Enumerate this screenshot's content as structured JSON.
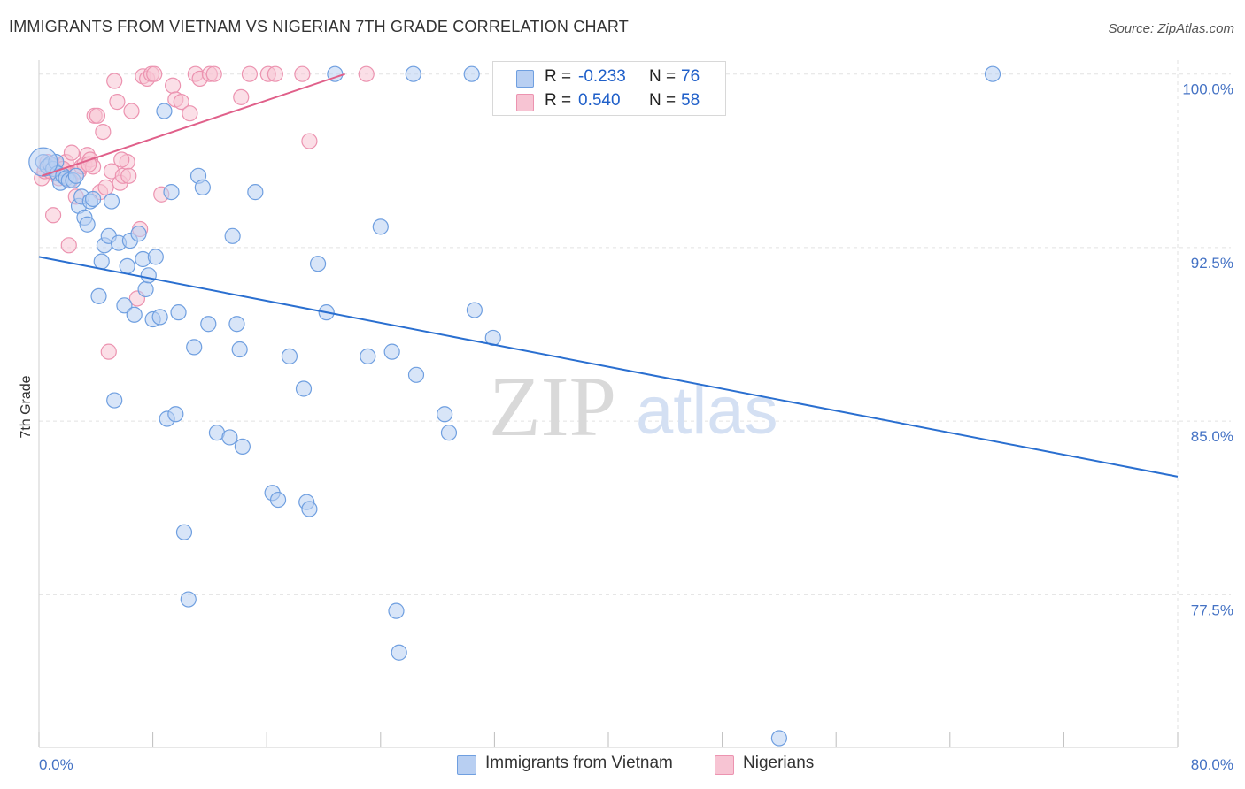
{
  "header": {
    "title": "IMMIGRANTS FROM VIETNAM VS NIGERIAN 7TH GRADE CORRELATION CHART",
    "source": "Source: ZipAtlas.com"
  },
  "watermark": {
    "zip": "ZIP",
    "atlas": "atlas"
  },
  "legend_top": {
    "rows": [
      {
        "r_label": "R =",
        "r_value": "-0.233",
        "n_label": "N =",
        "n_value": "76"
      },
      {
        "r_label": "R =",
        "r_value": "0.540",
        "n_label": "N =",
        "n_value": "58"
      }
    ]
  },
  "colors": {
    "blue_fill": "#b8cff2",
    "blue_stroke": "#6f9fe0",
    "blue_line": "#2a6fd0",
    "pink_fill": "#f7c4d3",
    "pink_stroke": "#ec93b0",
    "pink_line": "#e0608a",
    "tick_text": "#4472c4",
    "grid": "#e2e2e2"
  },
  "chart_data": {
    "type": "scatter",
    "title": "IMMIGRANTS FROM VIETNAM VS NIGERIAN 7TH GRADE CORRELATION CHART",
    "xlabel": "",
    "ylabel": "7th Grade",
    "xlim": [
      0,
      80
    ],
    "ylim": [
      70.9,
      100.6
    ],
    "x_tick_labels": [
      {
        "x": 0,
        "label": "0.0%"
      },
      {
        "x": 80,
        "label": "80.0%"
      }
    ],
    "x_minor_ticks": [
      0,
      8,
      16,
      24,
      32,
      40,
      48,
      56,
      64,
      72,
      80
    ],
    "y_ticks": [
      {
        "y": 100.0,
        "label": "100.0%"
      },
      {
        "y": 92.5,
        "label": "92.5%"
      },
      {
        "y": 85.0,
        "label": "85.0%"
      },
      {
        "y": 77.5,
        "label": "77.5%"
      }
    ],
    "grid_y": [
      100.0,
      92.5,
      85.0,
      77.5
    ],
    "legend_placement": "top-center",
    "series": [
      {
        "name": "Immigrants from Vietnam",
        "color": "#b8cff2",
        "R": -0.233,
        "N": 76,
        "trend": {
          "x": [
            0,
            80
          ],
          "y": [
            92.1,
            82.6
          ]
        },
        "points": [
          {
            "x": 0.3,
            "y": 96.2
          },
          {
            "x": 0.6,
            "y": 96.0
          },
          {
            "x": 0.8,
            "y": 96.1
          },
          {
            "x": 1.0,
            "y": 95.9
          },
          {
            "x": 1.2,
            "y": 96.2
          },
          {
            "x": 1.3,
            "y": 95.7
          },
          {
            "x": 1.5,
            "y": 95.3
          },
          {
            "x": 1.7,
            "y": 95.6
          },
          {
            "x": 1.9,
            "y": 95.5
          },
          {
            "x": 2.1,
            "y": 95.4
          },
          {
            "x": 2.4,
            "y": 95.4
          },
          {
            "x": 2.6,
            "y": 95.6
          },
          {
            "x": 2.8,
            "y": 94.3
          },
          {
            "x": 3.0,
            "y": 94.7
          },
          {
            "x": 3.2,
            "y": 93.8
          },
          {
            "x": 3.4,
            "y": 93.5
          },
          {
            "x": 3.6,
            "y": 94.5
          },
          {
            "x": 3.8,
            "y": 94.6
          },
          {
            "x": 4.2,
            "y": 90.4
          },
          {
            "x": 4.4,
            "y": 91.9
          },
          {
            "x": 4.6,
            "y": 92.6
          },
          {
            "x": 4.9,
            "y": 93.0
          },
          {
            "x": 5.1,
            "y": 94.5
          },
          {
            "x": 5.3,
            "y": 85.9
          },
          {
            "x": 5.6,
            "y": 92.7
          },
          {
            "x": 6.0,
            "y": 90.0
          },
          {
            "x": 6.2,
            "y": 91.7
          },
          {
            "x": 6.4,
            "y": 92.8
          },
          {
            "x": 6.7,
            "y": 89.6
          },
          {
            "x": 7.0,
            "y": 93.1
          },
          {
            "x": 7.3,
            "y": 92.0
          },
          {
            "x": 7.5,
            "y": 90.7
          },
          {
            "x": 7.7,
            "y": 91.3
          },
          {
            "x": 8.0,
            "y": 89.4
          },
          {
            "x": 8.2,
            "y": 92.1
          },
          {
            "x": 8.5,
            "y": 89.5
          },
          {
            "x": 8.8,
            "y": 98.4
          },
          {
            "x": 9.0,
            "y": 85.1
          },
          {
            "x": 9.3,
            "y": 94.9
          },
          {
            "x": 9.6,
            "y": 85.3
          },
          {
            "x": 9.8,
            "y": 89.7
          },
          {
            "x": 10.2,
            "y": 80.2
          },
          {
            "x": 10.5,
            "y": 77.3
          },
          {
            "x": 10.9,
            "y": 88.2
          },
          {
            "x": 11.2,
            "y": 95.6
          },
          {
            "x": 11.5,
            "y": 95.1
          },
          {
            "x": 11.9,
            "y": 89.2
          },
          {
            "x": 12.5,
            "y": 84.5
          },
          {
            "x": 13.4,
            "y": 84.3
          },
          {
            "x": 13.6,
            "y": 93.0
          },
          {
            "x": 13.9,
            "y": 89.2
          },
          {
            "x": 14.1,
            "y": 88.1
          },
          {
            "x": 14.3,
            "y": 83.9
          },
          {
            "x": 15.2,
            "y": 94.9
          },
          {
            "x": 16.4,
            "y": 81.9
          },
          {
            "x": 16.8,
            "y": 81.6
          },
          {
            "x": 17.6,
            "y": 87.8
          },
          {
            "x": 18.6,
            "y": 86.4
          },
          {
            "x": 18.8,
            "y": 81.5
          },
          {
            "x": 19.0,
            "y": 81.2
          },
          {
            "x": 19.6,
            "y": 91.8
          },
          {
            "x": 20.2,
            "y": 89.7
          },
          {
            "x": 20.8,
            "y": 100.0
          },
          {
            "x": 23.1,
            "y": 87.8
          },
          {
            "x": 24.0,
            "y": 93.4
          },
          {
            "x": 24.8,
            "y": 88.0
          },
          {
            "x": 25.1,
            "y": 76.8
          },
          {
            "x": 25.3,
            "y": 75.0
          },
          {
            "x": 26.3,
            "y": 100.0
          },
          {
            "x": 26.5,
            "y": 87.0
          },
          {
            "x": 28.5,
            "y": 85.3
          },
          {
            "x": 28.8,
            "y": 84.5
          },
          {
            "x": 30.4,
            "y": 100.0
          },
          {
            "x": 30.6,
            "y": 89.8
          },
          {
            "x": 31.9,
            "y": 88.6
          },
          {
            "x": 67.0,
            "y": 100.0
          },
          {
            "x": 52.0,
            "y": 71.3
          }
        ],
        "large_points": [
          {
            "x": 0.3,
            "y": 96.2
          }
        ]
      },
      {
        "name": "Nigerians",
        "color": "#f7c4d3",
        "R": 0.54,
        "N": 58,
        "trend": {
          "x": [
            0.2,
            21.5
          ],
          "y": [
            95.6,
            100.0
          ]
        },
        "points": [
          {
            "x": 0.2,
            "y": 95.5
          },
          {
            "x": 0.4,
            "y": 95.8
          },
          {
            "x": 0.6,
            "y": 96.2
          },
          {
            "x": 0.8,
            "y": 95.8
          },
          {
            "x": 1.0,
            "y": 93.9
          },
          {
            "x": 1.2,
            "y": 96.1
          },
          {
            "x": 1.4,
            "y": 95.5
          },
          {
            "x": 1.6,
            "y": 95.9
          },
          {
            "x": 1.9,
            "y": 96.2
          },
          {
            "x": 2.1,
            "y": 92.6
          },
          {
            "x": 2.3,
            "y": 96.6
          },
          {
            "x": 2.6,
            "y": 94.7
          },
          {
            "x": 2.8,
            "y": 95.8
          },
          {
            "x": 3.0,
            "y": 96.0
          },
          {
            "x": 3.2,
            "y": 96.1
          },
          {
            "x": 3.4,
            "y": 96.5
          },
          {
            "x": 3.6,
            "y": 96.3
          },
          {
            "x": 3.8,
            "y": 96.0
          },
          {
            "x": 3.9,
            "y": 98.2
          },
          {
            "x": 4.1,
            "y": 98.2
          },
          {
            "x": 4.3,
            "y": 94.9
          },
          {
            "x": 4.5,
            "y": 97.5
          },
          {
            "x": 4.7,
            "y": 95.1
          },
          {
            "x": 4.9,
            "y": 88.0
          },
          {
            "x": 5.1,
            "y": 95.8
          },
          {
            "x": 5.3,
            "y": 99.7
          },
          {
            "x": 5.5,
            "y": 98.8
          },
          {
            "x": 5.7,
            "y": 95.3
          },
          {
            "x": 5.9,
            "y": 95.6
          },
          {
            "x": 6.2,
            "y": 96.2
          },
          {
            "x": 6.5,
            "y": 98.4
          },
          {
            "x": 6.9,
            "y": 90.3
          },
          {
            "x": 7.1,
            "y": 93.3
          },
          {
            "x": 7.3,
            "y": 99.9
          },
          {
            "x": 7.6,
            "y": 99.8
          },
          {
            "x": 7.9,
            "y": 100.0
          },
          {
            "x": 8.1,
            "y": 100.0
          },
          {
            "x": 8.6,
            "y": 94.8
          },
          {
            "x": 9.4,
            "y": 99.5
          },
          {
            "x": 9.6,
            "y": 98.9
          },
          {
            "x": 10.0,
            "y": 98.8
          },
          {
            "x": 10.6,
            "y": 98.3
          },
          {
            "x": 11.0,
            "y": 100.0
          },
          {
            "x": 11.3,
            "y": 99.8
          },
          {
            "x": 12.0,
            "y": 100.0
          },
          {
            "x": 12.3,
            "y": 100.0
          },
          {
            "x": 14.2,
            "y": 99.0
          },
          {
            "x": 14.8,
            "y": 100.0
          },
          {
            "x": 16.1,
            "y": 100.0
          },
          {
            "x": 16.6,
            "y": 100.0
          },
          {
            "x": 18.5,
            "y": 100.0
          },
          {
            "x": 19.0,
            "y": 97.1
          },
          {
            "x": 23.0,
            "y": 100.0
          },
          {
            "x": 6.3,
            "y": 95.6
          },
          {
            "x": 3.5,
            "y": 96.1
          },
          {
            "x": 2.2,
            "y": 95.4
          },
          {
            "x": 1.7,
            "y": 95.9
          },
          {
            "x": 5.8,
            "y": 96.3
          }
        ]
      }
    ]
  },
  "legend_bottom": {
    "items": [
      {
        "label": "Immigrants from Vietnam"
      },
      {
        "label": "Nigerians"
      }
    ]
  }
}
